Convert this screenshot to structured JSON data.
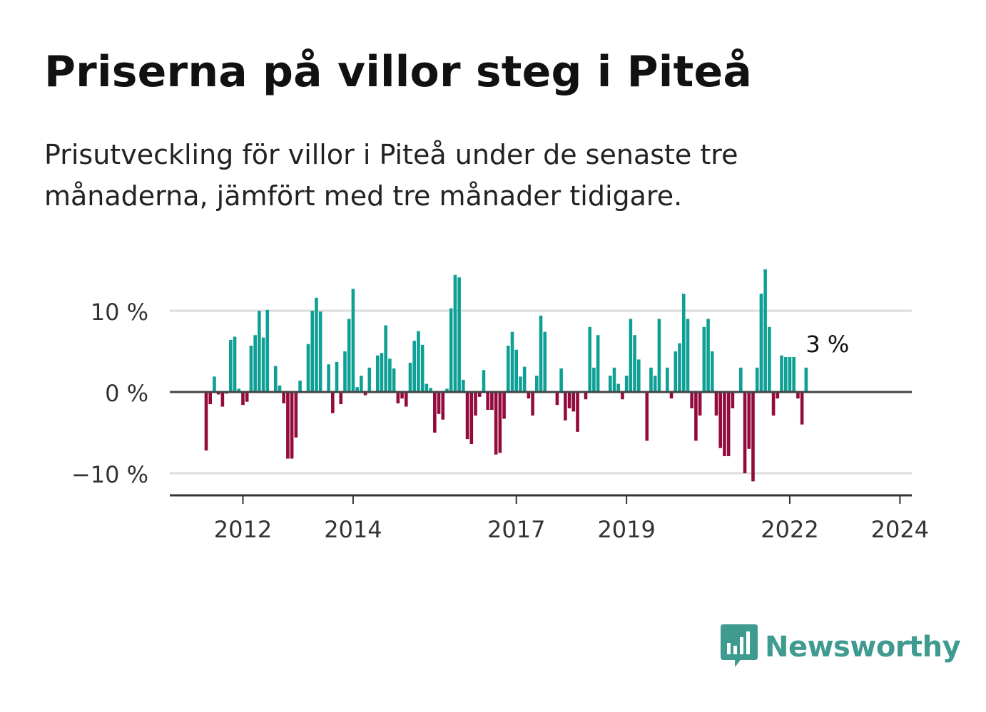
{
  "title": "Priserna på villor steg i Piteå",
  "subtitle": "Prisutveckling för villor i Piteå under de senaste tre månaderna, jämfört med tre månader tidigare.",
  "brand": {
    "name": "Newsworthy",
    "color": "#3f9a8f",
    "icon": "newsworthy-logo-icon"
  },
  "colors": {
    "positive": "#0e9f95",
    "negative": "#930a3d",
    "grid": "#dcdcdc",
    "axis": "#333333"
  },
  "chart_data": {
    "type": "bar",
    "title": "Priserna på villor steg i Piteå",
    "ylabel": "",
    "xlabel": "",
    "ylim": [
      -12.5,
      15
    ],
    "y_ticks": [
      {
        "value": 10,
        "label": "10 %"
      },
      {
        "value": 0,
        "label": "0 %"
      },
      {
        "value": -10,
        "label": "−10 %"
      }
    ],
    "x_ticks": [
      {
        "index": 9,
        "label": "2012"
      },
      {
        "index": 36,
        "label": "2014"
      },
      {
        "index": 76,
        "label": "2017"
      },
      {
        "index": 103,
        "label": "2019"
      },
      {
        "index": 143,
        "label": "2022"
      },
      {
        "index": 170,
        "label": "2024"
      }
    ],
    "series": [
      {
        "name": "Prisutveckling",
        "values": [
          -7.2,
          -1.5,
          1.9,
          -0.3,
          -1.8,
          -0.2,
          6.4,
          6.8,
          0.4,
          -1.6,
          -1.2,
          5.7,
          7.0,
          10.0,
          6.7,
          10.1,
          0.0,
          3.2,
          0.8,
          -1.4,
          -8.2,
          -8.2,
          -5.6,
          1.4,
          0.0,
          5.9,
          10.0,
          11.6,
          9.9,
          0.0,
          3.4,
          -2.6,
          3.7,
          -1.5,
          5.0,
          9.0,
          12.7,
          0.6,
          2.0,
          -0.4,
          3.0,
          0.0,
          4.5,
          4.8,
          8.2,
          4.1,
          2.9,
          -1.4,
          -0.8,
          -1.8,
          3.6,
          6.3,
          7.5,
          5.8,
          1.0,
          0.5,
          -5.0,
          -2.7,
          -3.4,
          0.4,
          10.3,
          14.4,
          14.1,
          1.5,
          -5.8,
          -6.4,
          -2.9,
          -0.6,
          2.7,
          -2.2,
          -2.2,
          -7.7,
          -7.5,
          -3.3,
          5.7,
          7.4,
          5.2,
          1.9,
          3.1,
          -0.8,
          -2.9,
          2.0,
          9.4,
          7.4,
          0.0,
          0.0,
          -1.6,
          2.9,
          -3.5,
          -2.0,
          -2.4,
          -4.9,
          0.0,
          -0.9,
          8.0,
          3.0,
          7.0,
          0.0,
          0.0,
          2.0,
          3.0,
          1.0,
          -0.9,
          2.0,
          9.0,
          7.0,
          4.0,
          0.0,
          -6.0,
          3.0,
          2.0,
          9.0,
          0.0,
          3.0,
          -0.8,
          5.0,
          6.0,
          12.1,
          9.0,
          -2.0,
          -6.0,
          -2.9,
          8.0,
          9.0,
          5.0,
          -2.9,
          -6.9,
          -7.9,
          -7.9,
          -2.0,
          0.0,
          3.0,
          -10.0,
          -7.0,
          -11.0,
          3.0,
          12.1,
          15.1,
          8.0,
          -2.9,
          -0.8,
          4.5,
          4.3,
          4.3,
          4.3,
          -0.8,
          -4.0,
          3.0
        ]
      }
    ],
    "annotations": [
      {
        "label": "3 %"
      }
    ]
  }
}
